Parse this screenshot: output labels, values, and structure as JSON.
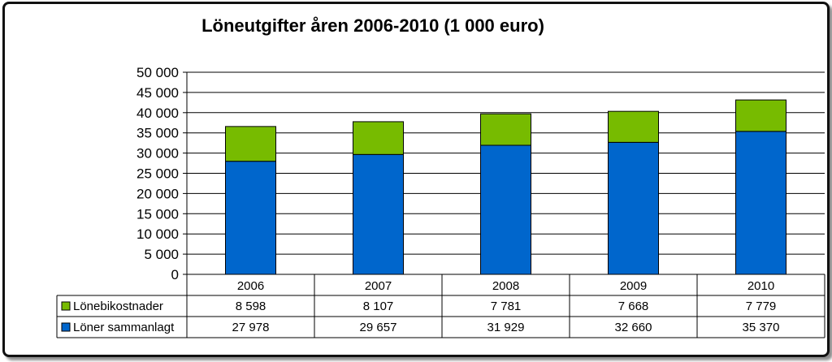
{
  "chart_data": {
    "type": "bar",
    "stacked": true,
    "title": "Löneutgifter åren 2006-2010 (1 000 euro)",
    "categories": [
      "2006",
      "2007",
      "2008",
      "2009",
      "2010"
    ],
    "ylim": [
      0,
      50000
    ],
    "y_ticks": [
      "0",
      "5 000",
      "10 000",
      "15 000",
      "20 000",
      "25 000",
      "30 000",
      "35 000",
      "40 000",
      "45 000",
      "50 000"
    ],
    "grid": true,
    "legend_placement": "data-table-left",
    "series": [
      {
        "name": "Löner sammanlagt",
        "color": "#0066cc",
        "values": [
          27978,
          29657,
          31929,
          32660,
          35370
        ],
        "labels": [
          "27 978",
          "29 657",
          "31 929",
          "32 660",
          "35 370"
        ]
      },
      {
        "name": "Lönebikostnader",
        "color": "#77bb00",
        "values": [
          8598,
          8107,
          7781,
          7668,
          7779
        ],
        "labels": [
          "8 598",
          "8 107",
          "7 781",
          "7 668",
          "7 779"
        ]
      }
    ]
  }
}
